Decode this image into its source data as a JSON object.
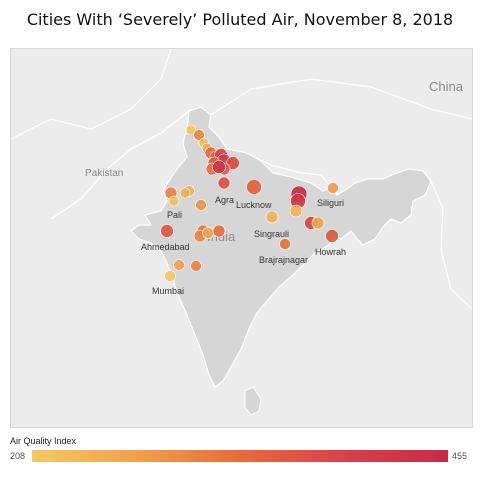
{
  "title": "Cities With ‘Severely’ Polluted Air, November 8, 2018",
  "map": {
    "country_labels": [
      {
        "id": "china",
        "text": "China"
      },
      {
        "id": "pakistan",
        "text": "Pakistan"
      },
      {
        "id": "india",
        "text": "India"
      }
    ],
    "city_labels": [
      {
        "id": "agra",
        "text": "Agra"
      },
      {
        "id": "lucknow",
        "text": "Lucknow"
      },
      {
        "id": "pali",
        "text": "Pali"
      },
      {
        "id": "ahmedabad",
        "text": "Ahmedabad"
      },
      {
        "id": "singrauli",
        "text": "Singrauli"
      },
      {
        "id": "siliguri",
        "text": "Siliguri"
      },
      {
        "id": "howrah",
        "text": "Howrah"
      },
      {
        "id": "brajrajnagar",
        "text": "Brajrajnagar"
      },
      {
        "id": "mumbai",
        "text": "Mumbai"
      }
    ],
    "color_scale": {
      "low": "#f6ca60",
      "mid": "#e86b3c",
      "high": "#c72a47"
    },
    "points": [
      {
        "aqi": 215
      },
      {
        "aqi": 300
      },
      {
        "aqi": 230
      },
      {
        "aqi": 250
      },
      {
        "aqi": 340
      },
      {
        "aqi": 370
      },
      {
        "aqi": 400
      },
      {
        "aqi": 420
      },
      {
        "aqi": 360
      },
      {
        "aqi": 390
      },
      {
        "aqi": 330
      },
      {
        "aqi": 370
      },
      {
        "aqi": 440
      },
      {
        "aqi": 380
      },
      {
        "aqi": 300
      },
      {
        "aqi": 240
      },
      {
        "aqi": 225
      },
      {
        "aqi": 280
      },
      {
        "aqi": 370
      },
      {
        "aqi": 320
      },
      {
        "aqi": 300
      },
      {
        "aqi": 260
      },
      {
        "aqi": 330
      },
      {
        "aqi": 350
      },
      {
        "aqi": 240
      },
      {
        "aqi": 455
      },
      {
        "aqi": 430
      },
      {
        "aqi": 400
      },
      {
        "aqi": 260
      },
      {
        "aqi": 240
      },
      {
        "aqi": 370
      },
      {
        "aqi": 330
      },
      {
        "aqi": 270
      },
      {
        "aqi": 260
      },
      {
        "aqi": 300
      },
      {
        "aqi": 215
      },
      {
        "aqi": 250
      }
    ]
  },
  "legend": {
    "title": "Air Quality Index",
    "min": "208",
    "max": "455"
  }
}
